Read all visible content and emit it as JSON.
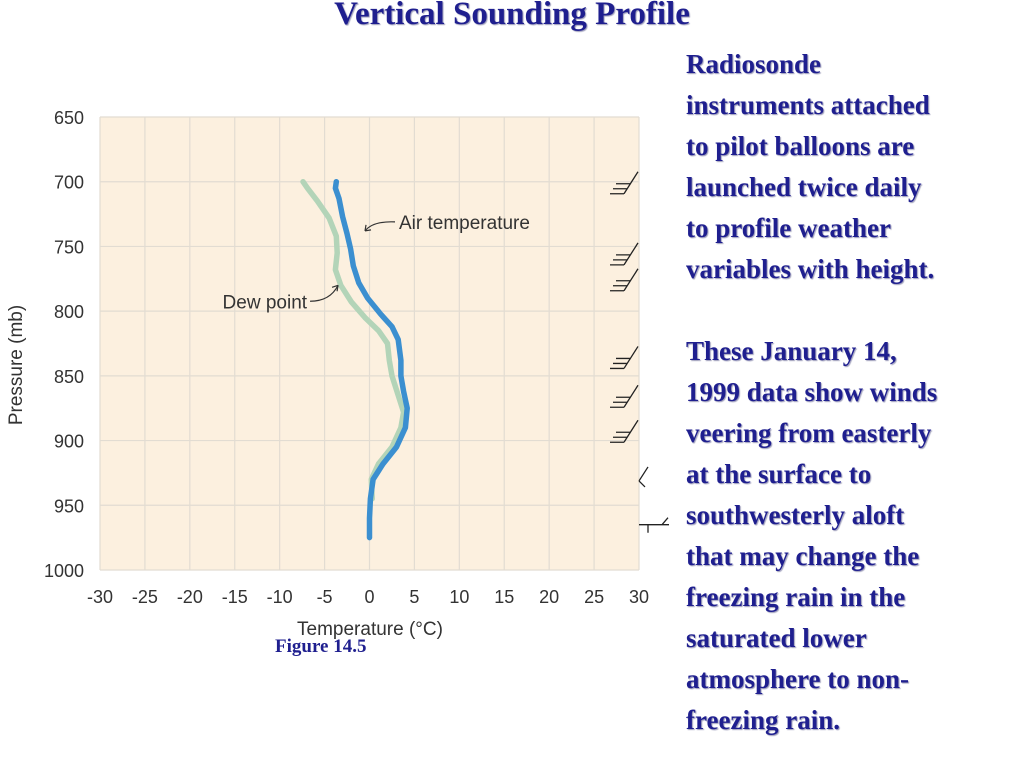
{
  "slide": {
    "title": "Vertical Sounding Profile",
    "paragraph1": "Radiosonde\ninstruments attached\nto pilot balloons are\nlaunched twice daily\nto profile weather\nvariables with height.",
    "paragraph2": "These January 14,\n1999 data show winds\nveering from easterly\nat the surface to\nsouthwesterly aloft\nthat may change the\nfreezing rain in the\nsaturated lower\natmosphere to non-\nfreezing rain.",
    "figure_caption": "Figure 14.5"
  },
  "chart_data": {
    "type": "line",
    "title": "",
    "xlabel": "Temperature (°C)",
    "ylabel": "Pressure (mb)",
    "xlim": [
      -30,
      30
    ],
    "ylim": [
      1000,
      650
    ],
    "x_ticks": [
      "-30",
      "-25",
      "-20",
      "-15",
      "-10",
      "-5",
      "0",
      "5",
      "10",
      "15",
      "20",
      "25",
      "30"
    ],
    "y_ticks": [
      "650",
      "700",
      "750",
      "800",
      "850",
      "900",
      "950",
      "1000"
    ],
    "grid": true,
    "colors": {
      "plot_background": "#fcf0df",
      "grid": "#e2dcd2",
      "air_temperature": "#3b8fd0",
      "dew_point": "#b3d4b8"
    },
    "annotations": [
      {
        "text": "Air temperature",
        "series": "Air temperature",
        "point": [
          -0.5,
          738
        ]
      },
      {
        "text": "Dew point",
        "series": "Dew point",
        "point": [
          -3.5,
          780
        ]
      }
    ],
    "series": [
      {
        "name": "Air temperature",
        "points": [
          [
            0,
            975
          ],
          [
            0,
            960
          ],
          [
            0.1,
            945
          ],
          [
            0.4,
            930
          ],
          [
            1.5,
            918
          ],
          [
            3.0,
            905
          ],
          [
            4.0,
            890
          ],
          [
            4.2,
            875
          ],
          [
            3.8,
            862
          ],
          [
            3.5,
            850
          ],
          [
            3.5,
            838
          ],
          [
            3.2,
            822
          ],
          [
            2.5,
            812
          ],
          [
            1.2,
            802
          ],
          [
            -0.2,
            790
          ],
          [
            -1.2,
            778
          ],
          [
            -1.8,
            765
          ],
          [
            -2.1,
            752
          ],
          [
            -2.5,
            740
          ],
          [
            -3.0,
            727
          ],
          [
            -3.4,
            713
          ],
          [
            -3.8,
            705
          ],
          [
            -3.7,
            700
          ]
        ]
      },
      {
        "name": "Dew point",
        "points": [
          [
            0.3,
            945
          ],
          [
            0.2,
            930
          ],
          [
            1.0,
            918
          ],
          [
            2.5,
            905
          ],
          [
            3.5,
            890
          ],
          [
            3.8,
            878
          ],
          [
            3.2,
            865
          ],
          [
            2.5,
            850
          ],
          [
            2.2,
            838
          ],
          [
            2.0,
            825
          ],
          [
            1.0,
            815
          ],
          [
            -0.5,
            805
          ],
          [
            -2.0,
            793
          ],
          [
            -3.2,
            780
          ],
          [
            -3.8,
            768
          ],
          [
            -3.6,
            755
          ],
          [
            -3.7,
            742
          ],
          [
            -4.5,
            728
          ],
          [
            -5.8,
            715
          ],
          [
            -6.9,
            705
          ],
          [
            -7.4,
            700
          ]
        ]
      }
    ],
    "wind_barbs_pressure": [
      700,
      755,
      775,
      835,
      865,
      892,
      925,
      965
    ]
  }
}
